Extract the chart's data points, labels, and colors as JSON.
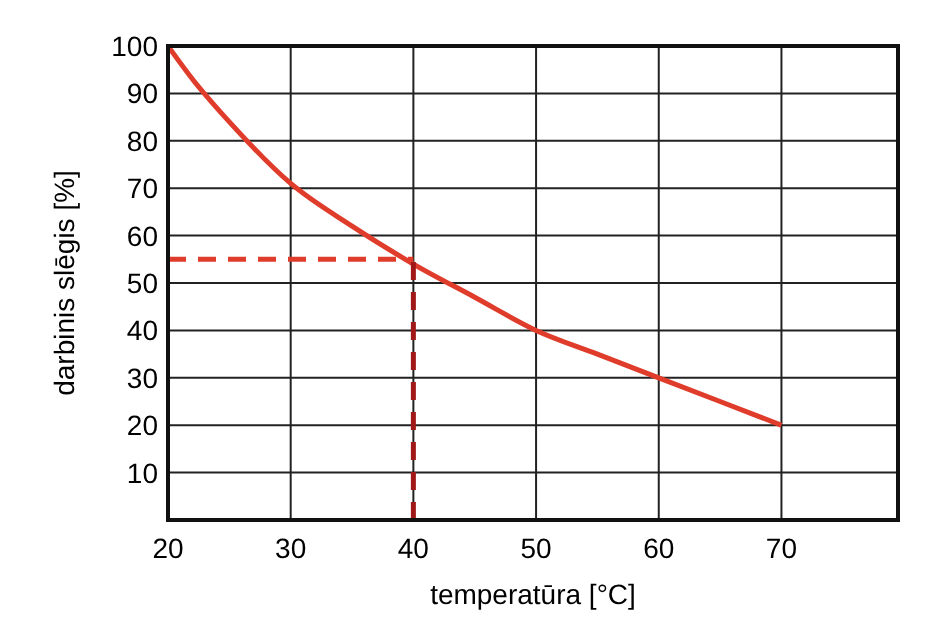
{
  "chart_data": {
    "type": "line",
    "xlabel": "temperatūra [°C]",
    "ylabel": "darbinis slēgis [%]",
    "xlim": [
      20,
      79.5
    ],
    "xticks": [
      20,
      30,
      40,
      50,
      60,
      70
    ],
    "ylim": [
      0,
      100
    ],
    "yticks": [
      10,
      20,
      30,
      40,
      50,
      60,
      70,
      80,
      90,
      100
    ],
    "grid": true,
    "series": [
      {
        "color": "#e03c2c",
        "x": [
          20,
          22,
          25,
          30,
          35,
          40,
          45,
          50,
          55,
          60,
          65,
          70
        ],
        "values": [
          100,
          93,
          84,
          71,
          62,
          54,
          47,
          40,
          35,
          30,
          25,
          20
        ],
        "line_style": "solid"
      },
      {
        "color": "#e03c2c",
        "x": [
          20,
          40
        ],
        "values": [
          55,
          55
        ],
        "line_style": "dashed"
      },
      {
        "color": "#a01818",
        "x": [
          40,
          40
        ],
        "values": [
          0,
          55
        ],
        "line_style": "dashed"
      }
    ]
  }
}
